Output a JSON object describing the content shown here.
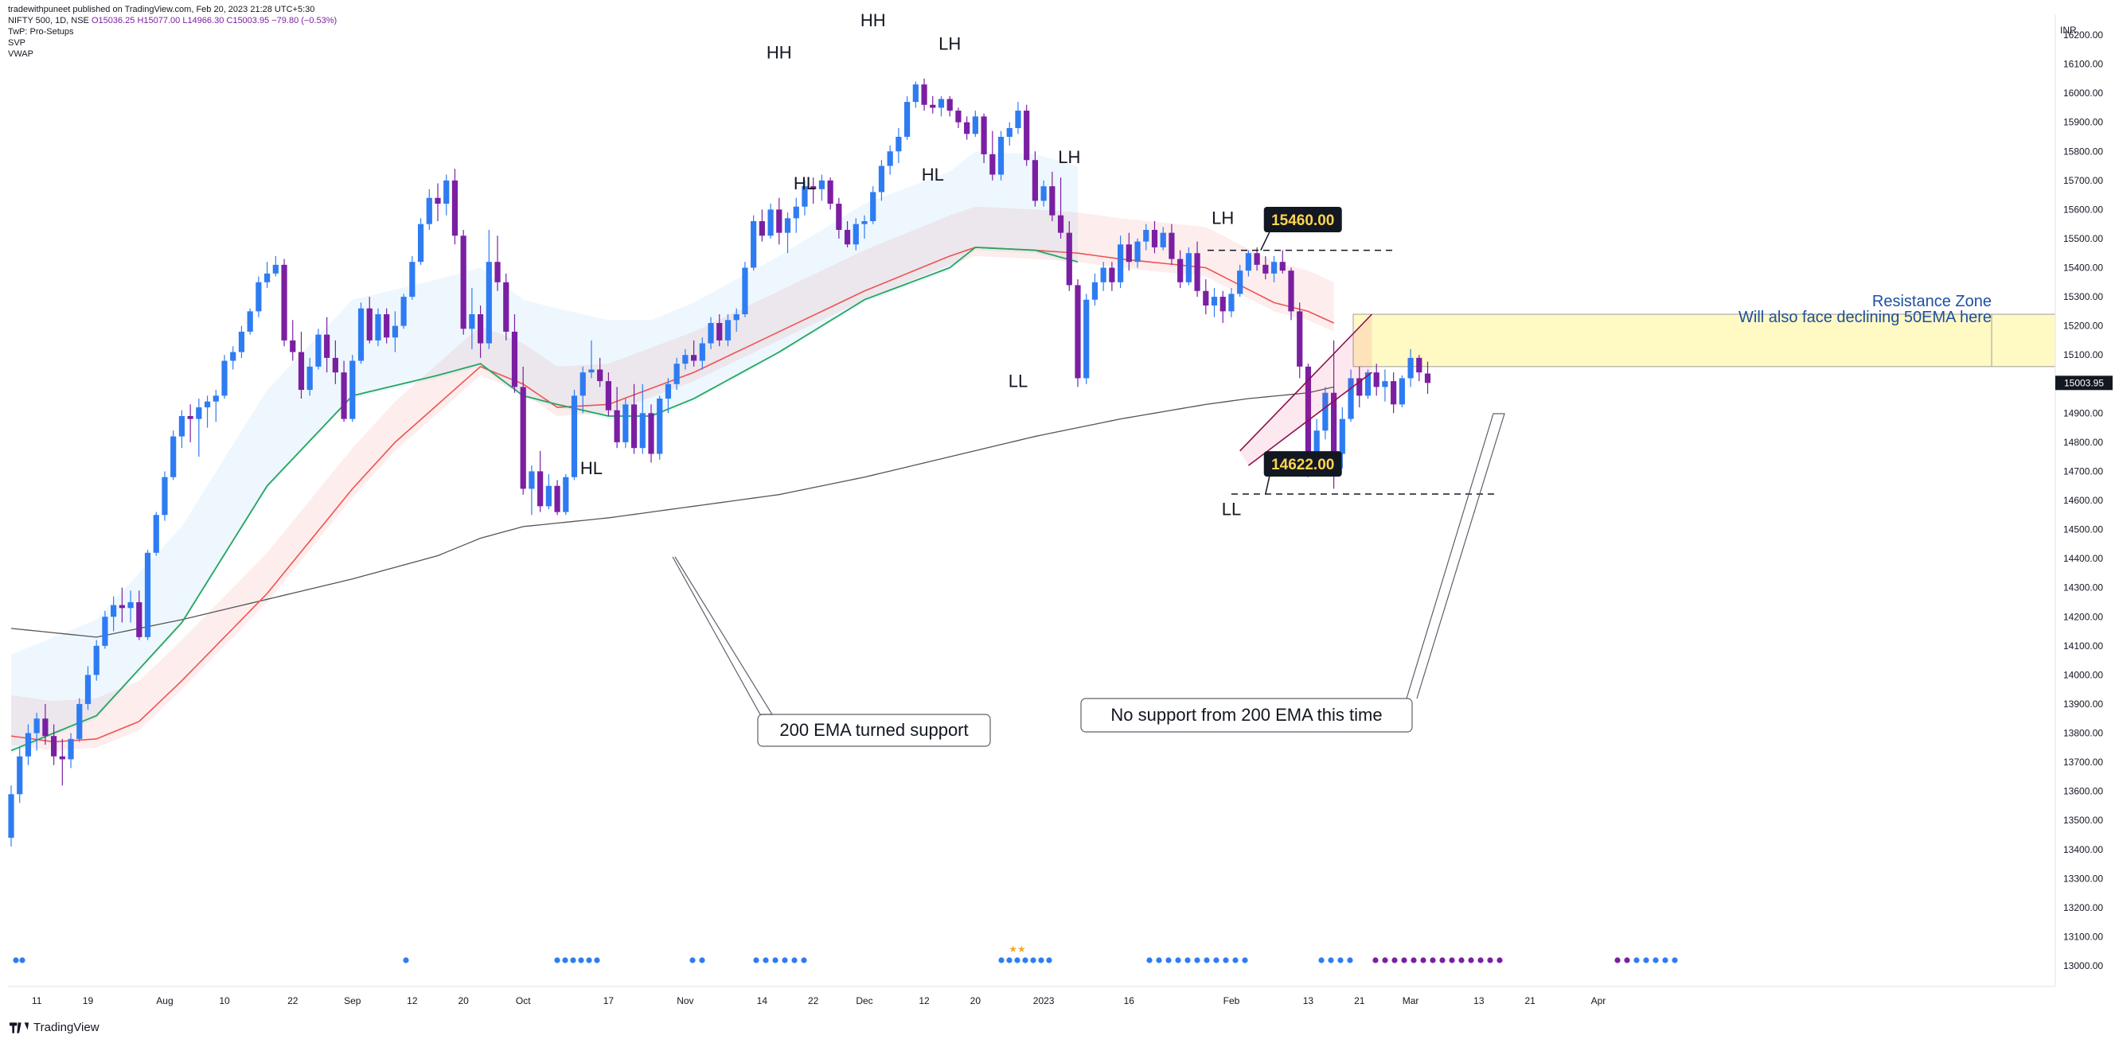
{
  "header": {
    "published": "tradewithpuneet published on TradingView.com, Feb 20, 2023 21:28 UTC+5:30",
    "symbol_line_prefix": "NIFTY 500, 1D, NSE",
    "ohlc": "O15036.25 H15077.00 L14966.30 C15003.95 −79.80 (−0.53%)",
    "indicators": [
      "TwP: Pro-Setups",
      "SVP",
      "VWAP"
    ]
  },
  "footer": {
    "brand": "TradingView"
  },
  "colors": {
    "up": "#2e7cf2",
    "down": "#7b1fa2",
    "ema50": "#ef5350",
    "ema21": "#26a65b",
    "ema200": "#555555",
    "zone": "#fff9c4",
    "annotation_blue": "#1e4fa0",
    "label_bg": "#131722",
    "label_fg": "#ffd54f"
  },
  "chart_data": {
    "type": "candlestick",
    "currency": "INR",
    "last_price": "15003.95",
    "ylim": [
      12950,
      16300
    ],
    "yticks": [
      "16200.00",
      "16100.00",
      "16000.00",
      "15900.00",
      "15800.00",
      "15700.00",
      "15600.00",
      "15500.00",
      "15400.00",
      "15300.00",
      "15200.00",
      "15100.00",
      "15000.00",
      "14900.00",
      "14800.00",
      "14700.00",
      "14600.00",
      "14500.00",
      "14400.00",
      "14300.00",
      "14200.00",
      "14100.00",
      "14000.00",
      "13900.00",
      "13800.00",
      "13700.00",
      "13600.00",
      "13500.00",
      "13400.00",
      "13300.00",
      "13200.00",
      "13100.00",
      "13000.00"
    ],
    "xticks": [
      {
        "label": "11",
        "i": 3
      },
      {
        "label": "19",
        "i": 9
      },
      {
        "label": "Aug",
        "i": 18
      },
      {
        "label": "10",
        "i": 25
      },
      {
        "label": "22",
        "i": 33
      },
      {
        "label": "Sep",
        "i": 40
      },
      {
        "label": "12",
        "i": 47
      },
      {
        "label": "20",
        "i": 53
      },
      {
        "label": "Oct",
        "i": 60
      },
      {
        "label": "17",
        "i": 70
      },
      {
        "label": "Nov",
        "i": 79
      },
      {
        "label": "14",
        "i": 88
      },
      {
        "label": "22",
        "i": 94
      },
      {
        "label": "Dec",
        "i": 100
      },
      {
        "label": "12",
        "i": 107
      },
      {
        "label": "20",
        "i": 113
      },
      {
        "label": "2023",
        "i": 121
      },
      {
        "label": "16",
        "i": 131
      },
      {
        "label": "Feb",
        "i": 143
      },
      {
        "label": "13",
        "i": 152
      },
      {
        "label": "21",
        "i": 158
      },
      {
        "label": "Mar",
        "i": 164
      },
      {
        "label": "13",
        "i": 172
      },
      {
        "label": "21",
        "i": 178
      },
      {
        "label": "Apr",
        "i": 186
      }
    ],
    "candles": [
      [
        13440,
        13620,
        13410,
        13590
      ],
      [
        13590,
        13750,
        13560,
        13720
      ],
      [
        13720,
        13830,
        13690,
        13800
      ],
      [
        13800,
        13870,
        13740,
        13850
      ],
      [
        13850,
        13900,
        13760,
        13790
      ],
      [
        13790,
        13830,
        13690,
        13720
      ],
      [
        13720,
        13780,
        13620,
        13710
      ],
      [
        13710,
        13800,
        13680,
        13780
      ],
      [
        13780,
        13920,
        13770,
        13900
      ],
      [
        13900,
        14030,
        13880,
        14000
      ],
      [
        14000,
        14120,
        13980,
        14100
      ],
      [
        14100,
        14220,
        14090,
        14200
      ],
      [
        14200,
        14270,
        14150,
        14240
      ],
      [
        14240,
        14300,
        14180,
        14230
      ],
      [
        14230,
        14290,
        14180,
        14250
      ],
      [
        14250,
        14290,
        14120,
        14130
      ],
      [
        14130,
        14430,
        14120,
        14420
      ],
      [
        14420,
        14560,
        14410,
        14550
      ],
      [
        14550,
        14700,
        14530,
        14680
      ],
      [
        14680,
        14840,
        14670,
        14820
      ],
      [
        14820,
        14910,
        14780,
        14890
      ],
      [
        14890,
        14930,
        14800,
        14880
      ],
      [
        14880,
        14950,
        14750,
        14920
      ],
      [
        14920,
        14960,
        14850,
        14940
      ],
      [
        14940,
        14980,
        14870,
        14960
      ],
      [
        14960,
        15100,
        14950,
        15080
      ],
      [
        15080,
        15130,
        15050,
        15110
      ],
      [
        15110,
        15200,
        15090,
        15180
      ],
      [
        15180,
        15260,
        15170,
        15250
      ],
      [
        15250,
        15370,
        15230,
        15350
      ],
      [
        15350,
        15420,
        15330,
        15380
      ],
      [
        15380,
        15440,
        15370,
        15410
      ],
      [
        15410,
        15430,
        15130,
        15150
      ],
      [
        15150,
        15220,
        15080,
        15110
      ],
      [
        15110,
        15180,
        14950,
        14980
      ],
      [
        14980,
        15090,
        14960,
        15060
      ],
      [
        15060,
        15190,
        15050,
        15170
      ],
      [
        15170,
        15230,
        15040,
        15090
      ],
      [
        15090,
        15150,
        15000,
        15040
      ],
      [
        15040,
        15080,
        14870,
        14880
      ],
      [
        14880,
        15100,
        14870,
        15080
      ],
      [
        15080,
        15280,
        15070,
        15260
      ],
      [
        15260,
        15300,
        15140,
        15150
      ],
      [
        15150,
        15260,
        15130,
        15240
      ],
      [
        15240,
        15260,
        15140,
        15160
      ],
      [
        15160,
        15250,
        15110,
        15200
      ],
      [
        15200,
        15310,
        15190,
        15300
      ],
      [
        15300,
        15440,
        15290,
        15420
      ],
      [
        15420,
        15570,
        15410,
        15550
      ],
      [
        15550,
        15670,
        15530,
        15640
      ],
      [
        15640,
        15690,
        15560,
        15620
      ],
      [
        15620,
        15720,
        15580,
        15700
      ],
      [
        15700,
        15740,
        15480,
        15510
      ],
      [
        15510,
        15530,
        15170,
        15190
      ],
      [
        15190,
        15330,
        15120,
        15240
      ],
      [
        15240,
        15270,
        15090,
        15140
      ],
      [
        15140,
        15530,
        15120,
        15420
      ],
      [
        15420,
        15510,
        15320,
        15350
      ],
      [
        15350,
        15380,
        15150,
        15180
      ],
      [
        15180,
        15240,
        14970,
        14990
      ],
      [
        14990,
        15060,
        14620,
        14640
      ],
      [
        14640,
        14720,
        14550,
        14700
      ],
      [
        14700,
        14770,
        14560,
        14580
      ],
      [
        14580,
        14690,
        14570,
        14650
      ],
      [
        14650,
        14670,
        14550,
        14560
      ],
      [
        14560,
        14690,
        14550,
        14680
      ],
      [
        14680,
        14980,
        14670,
        14960
      ],
      [
        14960,
        15060,
        14900,
        15040
      ],
      [
        15040,
        15150,
        15020,
        15050
      ],
      [
        15050,
        15090,
        14990,
        15010
      ],
      [
        15010,
        15040,
        14890,
        14910
      ],
      [
        14910,
        14990,
        14780,
        14800
      ],
      [
        14800,
        14950,
        14780,
        14930
      ],
      [
        14930,
        15000,
        14760,
        14780
      ],
      [
        14780,
        15000,
        14760,
        14900
      ],
      [
        14900,
        14930,
        14730,
        14760
      ],
      [
        14760,
        14960,
        14740,
        14950
      ],
      [
        14950,
        15020,
        14900,
        15000
      ],
      [
        15000,
        15090,
        14980,
        15070
      ],
      [
        15070,
        15120,
        15050,
        15100
      ],
      [
        15100,
        15150,
        15060,
        15080
      ],
      [
        15080,
        15160,
        15050,
        15140
      ],
      [
        15140,
        15230,
        15120,
        15210
      ],
      [
        15210,
        15240,
        15130,
        15150
      ],
      [
        15150,
        15240,
        15130,
        15220
      ],
      [
        15220,
        15260,
        15180,
        15240
      ],
      [
        15240,
        15420,
        15230,
        15400
      ],
      [
        15400,
        15580,
        15390,
        15560
      ],
      [
        15560,
        15600,
        15490,
        15510
      ],
      [
        15510,
        15620,
        15500,
        15600
      ],
      [
        15600,
        15640,
        15480,
        15520
      ],
      [
        15520,
        15590,
        15450,
        15570
      ],
      [
        15570,
        15640,
        15520,
        15610
      ],
      [
        15610,
        15700,
        15580,
        15680
      ],
      [
        15680,
        15710,
        15620,
        15670
      ],
      [
        15670,
        15720,
        15630,
        15700
      ],
      [
        15700,
        15710,
        15600,
        15620
      ],
      [
        15620,
        15640,
        15500,
        15530
      ],
      [
        15530,
        15560,
        15470,
        15480
      ],
      [
        15480,
        15570,
        15460,
        15550
      ],
      [
        15550,
        15580,
        15500,
        15560
      ],
      [
        15560,
        15680,
        15550,
        15660
      ],
      [
        15660,
        15770,
        15630,
        15750
      ],
      [
        15750,
        15820,
        15720,
        15800
      ],
      [
        15800,
        15880,
        15760,
        15850
      ],
      [
        15850,
        15990,
        15840,
        15970
      ],
      [
        15970,
        16040,
        15950,
        16030
      ],
      [
        16030,
        16050,
        15940,
        15960
      ],
      [
        15960,
        15990,
        15930,
        15950
      ],
      [
        15950,
        15990,
        15920,
        15980
      ],
      [
        15980,
        15990,
        15920,
        15940
      ],
      [
        15940,
        15950,
        15880,
        15900
      ],
      [
        15900,
        15920,
        15840,
        15860
      ],
      [
        15860,
        15940,
        15850,
        15920
      ],
      [
        15920,
        15930,
        15760,
        15790
      ],
      [
        15790,
        15870,
        15700,
        15720
      ],
      [
        15720,
        15870,
        15700,
        15850
      ],
      [
        15850,
        15900,
        15820,
        15880
      ],
      [
        15880,
        15970,
        15860,
        15940
      ],
      [
        15940,
        15960,
        15750,
        15770
      ],
      [
        15770,
        15800,
        15610,
        15630
      ],
      [
        15630,
        15700,
        15610,
        15680
      ],
      [
        15680,
        15730,
        15560,
        15580
      ],
      [
        15580,
        15710,
        15500,
        15520
      ],
      [
        15520,
        15560,
        15320,
        15340
      ],
      [
        15340,
        15360,
        14990,
        15020
      ],
      [
        15020,
        15310,
        15000,
        15290
      ],
      [
        15290,
        15380,
        15270,
        15350
      ],
      [
        15350,
        15420,
        15320,
        15400
      ],
      [
        15400,
        15420,
        15320,
        15350
      ],
      [
        15350,
        15510,
        15330,
        15480
      ],
      [
        15480,
        15520,
        15390,
        15420
      ],
      [
        15420,
        15500,
        15400,
        15490
      ],
      [
        15490,
        15550,
        15460,
        15530
      ],
      [
        15530,
        15560,
        15450,
        15470
      ],
      [
        15470,
        15540,
        15460,
        15520
      ],
      [
        15520,
        15550,
        15410,
        15430
      ],
      [
        15430,
        15460,
        15330,
        15350
      ],
      [
        15350,
        15470,
        15340,
        15450
      ],
      [
        15450,
        15490,
        15300,
        15320
      ],
      [
        15320,
        15360,
        15240,
        15270
      ],
      [
        15270,
        15330,
        15230,
        15300
      ],
      [
        15300,
        15320,
        15210,
        15250
      ],
      [
        15250,
        15330,
        15230,
        15310
      ],
      [
        15310,
        15410,
        15300,
        15390
      ],
      [
        15390,
        15460,
        15370,
        15450
      ],
      [
        15450,
        15470,
        15390,
        15410
      ],
      [
        15410,
        15440,
        15360,
        15380
      ],
      [
        15380,
        15440,
        15350,
        15420
      ],
      [
        15420,
        15460,
        15380,
        15390
      ],
      [
        15390,
        15400,
        15220,
        15250
      ],
      [
        15250,
        15280,
        15020,
        15060
      ],
      [
        15060,
        15070,
        14680,
        14740
      ],
      [
        14740,
        14880,
        14730,
        14840
      ],
      [
        14840,
        14990,
        14810,
        14970
      ],
      [
        14970,
        15150,
        14640,
        14760
      ],
      [
        14760,
        14920,
        14710,
        14880
      ],
      [
        14880,
        15050,
        14870,
        15020
      ],
      [
        15020,
        15060,
        14920,
        14960
      ],
      [
        14960,
        15050,
        14950,
        15040
      ],
      [
        15040,
        15070,
        14960,
        14990
      ],
      [
        14990,
        15050,
        14940,
        15010
      ],
      [
        15010,
        15040,
        14900,
        14930
      ],
      [
        14930,
        15030,
        14920,
        15020
      ],
      [
        15020,
        15120,
        14990,
        15090
      ],
      [
        15090,
        15100,
        15010,
        15040
      ],
      [
        15036.25,
        15077,
        14966.3,
        15003.95
      ]
    ],
    "ema21_anchor": [
      [
        0,
        13740
      ],
      [
        10,
        13860
      ],
      [
        20,
        14180
      ],
      [
        30,
        14650
      ],
      [
        40,
        14960
      ],
      [
        50,
        15030
      ],
      [
        55,
        15070
      ],
      [
        60,
        14960
      ],
      [
        64,
        14930
      ],
      [
        70,
        14890
      ],
      [
        75,
        14890
      ],
      [
        80,
        14950
      ],
      [
        90,
        15110
      ],
      [
        100,
        15290
      ],
      [
        110,
        15400
      ],
      [
        113,
        15470
      ],
      [
        120,
        15460
      ],
      [
        125,
        15420
      ]
    ],
    "ema50_anchor": [
      [
        0,
        13790
      ],
      [
        5,
        13770
      ],
      [
        10,
        13780
      ],
      [
        15,
        13840
      ],
      [
        20,
        13980
      ],
      [
        30,
        14280
      ],
      [
        40,
        14640
      ],
      [
        45,
        14800
      ],
      [
        50,
        14930
      ],
      [
        55,
        15060
      ],
      [
        60,
        15000
      ],
      [
        64,
        14920
      ],
      [
        70,
        14930
      ],
      [
        80,
        15040
      ],
      [
        90,
        15180
      ],
      [
        100,
        15320
      ],
      [
        110,
        15440
      ],
      [
        113,
        15470
      ],
      [
        120,
        15460
      ],
      [
        125,
        15450
      ],
      [
        130,
        15430
      ],
      [
        140,
        15400
      ],
      [
        148,
        15280
      ],
      [
        152,
        15250
      ],
      [
        155,
        15210
      ]
    ],
    "ema200_anchor": [
      [
        0,
        14160
      ],
      [
        10,
        14130
      ],
      [
        20,
        14190
      ],
      [
        30,
        14260
      ],
      [
        40,
        14330
      ],
      [
        50,
        14410
      ],
      [
        55,
        14470
      ],
      [
        60,
        14510
      ],
      [
        70,
        14540
      ],
      [
        80,
        14580
      ],
      [
        90,
        14620
      ],
      [
        100,
        14680
      ],
      [
        110,
        14750
      ],
      [
        120,
        14820
      ],
      [
        130,
        14880
      ],
      [
        140,
        14930
      ],
      [
        145,
        14950
      ],
      [
        152,
        14970
      ],
      [
        155,
        14990
      ]
    ],
    "annotations": {
      "swing_labels": [
        {
          "text": "HH",
          "i": 90,
          "price": 16120
        },
        {
          "text": "HL",
          "i": 93,
          "price": 15670
        },
        {
          "text": "HL",
          "i": 68,
          "price": 14690
        },
        {
          "text": "HH",
          "i": 101,
          "price": 16230
        },
        {
          "text": "LH",
          "i": 110,
          "price": 16150
        },
        {
          "text": "HL",
          "i": 108,
          "price": 15700
        },
        {
          "text": "LH",
          "i": 124,
          "price": 15760
        },
        {
          "text": "LL",
          "i": 118,
          "price": 14990
        },
        {
          "text": "LH",
          "i": 142,
          "price": 15550
        },
        {
          "text": "LL",
          "i": 143,
          "price": 14550
        }
      ],
      "price_labels": [
        {
          "text": "15460.00",
          "i": 151,
          "price": 15560
        },
        {
          "text": "14622.00",
          "i": 151,
          "price": 14720
        }
      ],
      "callouts": [
        {
          "text": "200 EMA turned support"
        },
        {
          "text": "No support from 200 EMA this time"
        }
      ],
      "zone_title": "Resistance Zone",
      "zone_subtitle": "Will also face declining 50EMA here",
      "resistance_zone": [
        15060,
        15240
      ],
      "levels": [
        15460,
        14622
      ]
    }
  }
}
